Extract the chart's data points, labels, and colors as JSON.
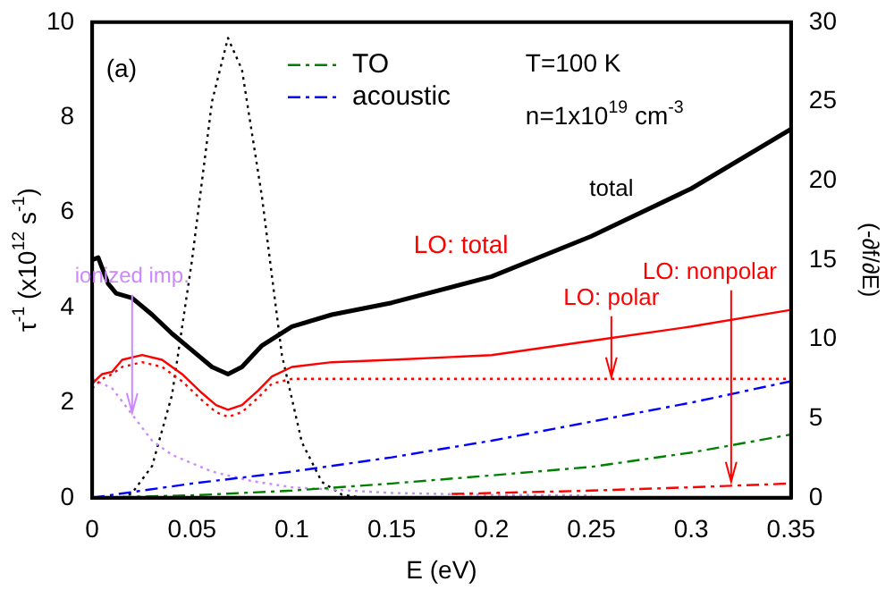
{
  "chart_data": {
    "type": "line",
    "xlabel": "E (eV)",
    "ylabel": "τ$^{-1}$ (x10$^{12}$ s$^{-1}$)",
    "y2label": "(-∂f/∂E)",
    "xlim": [
      0,
      0.35
    ],
    "xticks": [
      0,
      0.05,
      0.1,
      0.15,
      0.2,
      0.25,
      0.3,
      0.35
    ],
    "ylim": [
      0,
      10
    ],
    "yticks": [
      0,
      2,
      4,
      6,
      8,
      10
    ],
    "y2lim": [
      0,
      30
    ],
    "y2ticks": [
      0,
      5,
      10,
      15,
      20,
      25,
      30
    ],
    "legend": "top",
    "grid": false,
    "series": [
      {
        "color": "#000000",
        "line_style": "solid",
        "x": [
          0,
          0.003,
          0.008,
          0.012,
          0.02,
          0.03,
          0.04,
          0.05,
          0.06,
          0.068,
          0.075,
          0.085,
          0.1,
          0.12,
          0.15,
          0.2,
          0.25,
          0.3,
          0.35
        ],
        "values": [
          5.0,
          5.05,
          4.5,
          4.3,
          4.2,
          3.85,
          3.45,
          3.1,
          2.75,
          2.6,
          2.75,
          3.2,
          3.6,
          3.85,
          4.1,
          4.65,
          5.5,
          6.5,
          7.75
        ]
      },
      {
        "color": "#ff0000",
        "line_style": "solid",
        "x": [
          0,
          0.005,
          0.01,
          0.015,
          0.025,
          0.035,
          0.045,
          0.055,
          0.062,
          0.068,
          0.075,
          0.083,
          0.09,
          0.1,
          0.12,
          0.15,
          0.2,
          0.25,
          0.3,
          0.35
        ],
        "values": [
          2.4,
          2.6,
          2.65,
          2.9,
          3.0,
          2.9,
          2.6,
          2.2,
          1.95,
          1.85,
          1.95,
          2.25,
          2.55,
          2.75,
          2.85,
          2.9,
          3.0,
          3.3,
          3.6,
          3.95
        ]
      },
      {
        "color": "#ff0000",
        "line_style": "dotted",
        "x": [
          0,
          0.005,
          0.01,
          0.015,
          0.025,
          0.035,
          0.045,
          0.055,
          0.062,
          0.068,
          0.075,
          0.083,
          0.09,
          0.1,
          0.12,
          0.15,
          0.35
        ],
        "values": [
          2.3,
          2.5,
          2.6,
          2.75,
          2.85,
          2.75,
          2.45,
          2.05,
          1.8,
          1.7,
          1.8,
          2.1,
          2.4,
          2.5,
          2.5,
          2.5,
          2.5
        ]
      },
      {
        "color": "#ff0000",
        "line_style": "dashed",
        "x": [
          0.18,
          0.2,
          0.25,
          0.3,
          0.35
        ],
        "values": [
          0.08,
          0.1,
          0.15,
          0.22,
          0.3
        ]
      },
      {
        "name": "TO",
        "color": "#008000",
        "line_style": "dashed",
        "x": [
          0,
          0.05,
          0.1,
          0.15,
          0.2,
          0.25,
          0.3,
          0.35
        ],
        "values": [
          0,
          0.05,
          0.15,
          0.3,
          0.47,
          0.65,
          0.95,
          1.33
        ]
      },
      {
        "name": "acoustic",
        "color": "#0000ff",
        "line_style": "dashed",
        "x": [
          0,
          0.05,
          0.1,
          0.15,
          0.2,
          0.25,
          0.3,
          0.35
        ],
        "values": [
          0,
          0.3,
          0.55,
          0.85,
          1.2,
          1.6,
          2.0,
          2.45
        ]
      },
      {
        "color": "#cc88ff",
        "line_style": "dotted",
        "x": [
          0,
          0.005,
          0.01,
          0.02,
          0.03,
          0.04,
          0.06,
          0.08,
          0.1,
          0.15,
          0.2,
          0.25
        ],
        "values": [
          2.5,
          2.4,
          2.3,
          1.75,
          1.2,
          0.9,
          0.55,
          0.35,
          0.22,
          0.1,
          0.06,
          0.05
        ]
      },
      {
        "color": "#000000",
        "line_style": "dotted",
        "axis": "y2",
        "x": [
          0.015,
          0.02,
          0.03,
          0.04,
          0.05,
          0.06,
          0.068,
          0.075,
          0.085,
          0.095,
          0.105,
          0.115,
          0.125,
          0.135
        ],
        "values": [
          0,
          0.3,
          2,
          6.5,
          15,
          25,
          29,
          27,
          19,
          9,
          3.5,
          1,
          0.2,
          0
        ]
      }
    ],
    "annotations": [
      "(a)",
      "T=100 K",
      "n=1x10$^{19}$ cm$^{-3}$",
      {
        "text": "total",
        "x": 0.26,
        "y": 5.95
      },
      "LO: total",
      {
        "text": "LO: polar",
        "x": 0.26,
        "y": 2.5
      },
      {
        "text": "LO: nonpolar",
        "x": 0.32,
        "y": 0.3
      },
      {
        "text": "ionized imp.",
        "x": 0.02,
        "y": 1.75
      }
    ]
  }
}
